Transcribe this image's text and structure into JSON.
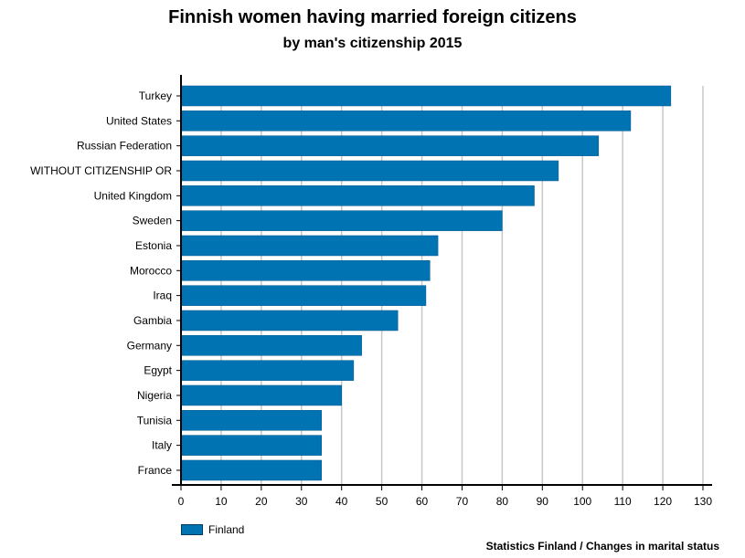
{
  "chart_data": {
    "type": "bar",
    "orientation": "horizontal",
    "title": "Finnish women having married foreign citizens",
    "subtitle": "by man's citizenship 2015",
    "categories": [
      "Turkey",
      "United States",
      "Russian Federation",
      "WITHOUT CITIZENSHIP OR",
      "United Kingdom",
      "Sweden",
      "Estonia",
      "Morocco",
      "Iraq",
      "Gambia",
      "Germany",
      "Egypt",
      "Nigeria",
      "Tunisia",
      "Italy",
      "France"
    ],
    "series": [
      {
        "name": "Finland",
        "color": "#0073b3",
        "values": [
          122,
          112,
          104,
          94,
          88,
          80,
          64,
          62,
          61,
          54,
          45,
          43,
          40,
          35,
          35,
          35
        ]
      }
    ],
    "xlim": [
      0,
      130
    ],
    "xticks": [
      "0",
      "10",
      "20",
      "30",
      "40",
      "50",
      "60",
      "70",
      "80",
      "90",
      "100",
      "110",
      "120",
      "130"
    ],
    "grid": true,
    "legend_position": "bottom-left"
  },
  "source": "Statistics Finland / Changes in marital status"
}
